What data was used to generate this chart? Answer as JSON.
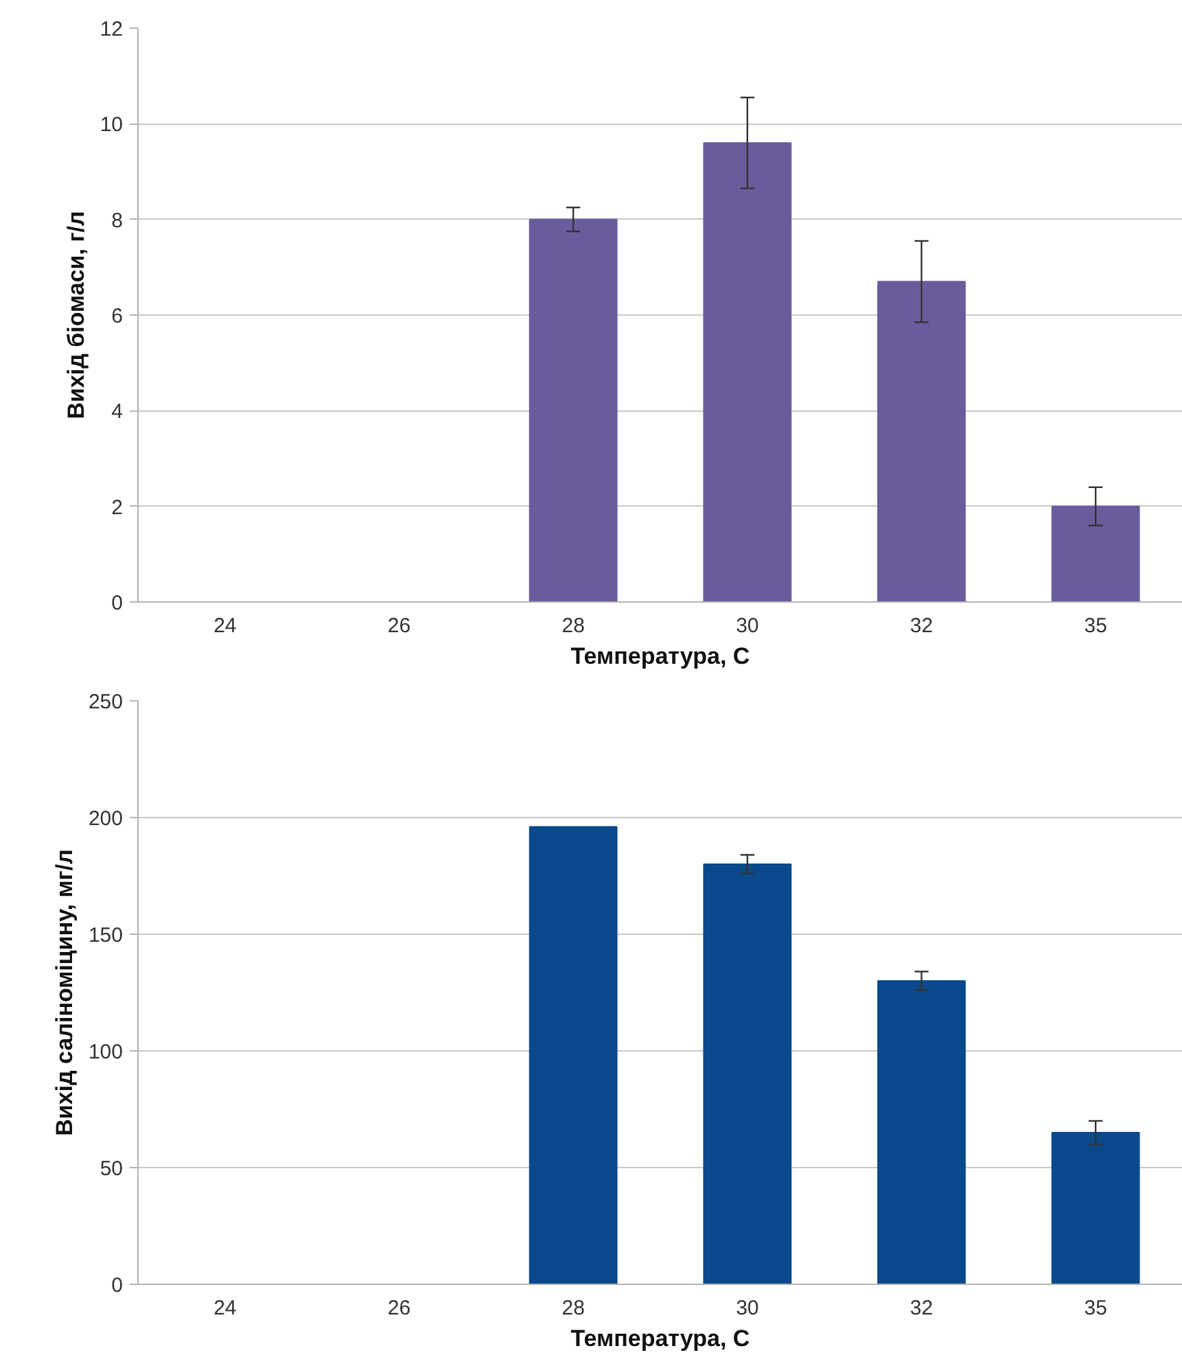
{
  "chart_data": [
    {
      "type": "bar",
      "xlabel": "Температура, С",
      "ylabel": "Вихід біомаси, г/л",
      "categories": [
        "24",
        "26",
        "28",
        "30",
        "32",
        "35"
      ],
      "values": [
        0,
        0,
        8.0,
        9.6,
        6.7,
        2.0
      ],
      "color": "#6a5c9c",
      "errors": [
        null,
        null,
        0.25,
        0.95,
        0.85,
        0.4
      ],
      "ylim": [
        0,
        12
      ],
      "yticks": [
        0,
        2,
        4,
        6,
        8,
        10,
        12
      ],
      "grid": "y"
    },
    {
      "type": "bar",
      "xlabel": "Температура, С",
      "ylabel": "Вихід саліноміцину, мг/л",
      "categories": [
        "24",
        "26",
        "28",
        "30",
        "32",
        "35"
      ],
      "values": [
        0,
        0,
        196,
        180,
        130,
        65
      ],
      "color": "#0a4a8c",
      "errors": [
        null,
        null,
        null,
        4,
        4,
        5
      ],
      "ylim": [
        0,
        250
      ],
      "yticks": [
        0,
        50,
        100,
        150,
        200,
        250
      ],
      "grid": "y"
    }
  ]
}
